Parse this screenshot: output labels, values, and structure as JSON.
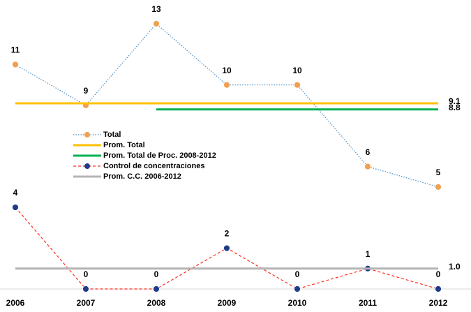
{
  "chart_data": {
    "type": "line",
    "categories": [
      "2006",
      "2007",
      "2008",
      "2009",
      "2010",
      "2011",
      "2012"
    ],
    "ylim": [
      0,
      13
    ],
    "series": [
      {
        "name": "Total",
        "color": "#4a90c8",
        "line_style": "dotted",
        "marker": true,
        "marker_color": "#f0a050",
        "values": [
          11,
          9,
          13,
          10,
          10,
          6,
          5
        ],
        "point_labels": true
      },
      {
        "name": "Prom. Total",
        "color": "#ffc000",
        "line_style": "solid",
        "marker": false,
        "values": [
          9.1,
          9.1,
          9.1,
          9.1,
          9.1,
          9.1,
          9.1
        ],
        "value_labels": [
          null,
          null,
          null,
          null,
          null,
          null,
          "9.1"
        ]
      },
      {
        "name": "Prom. Total de Proc. 2008-2012",
        "color": "#00b050",
        "line_style": "solid",
        "marker": false,
        "values": [
          null,
          null,
          8.8,
          8.8,
          8.8,
          8.8,
          8.8
        ],
        "value_labels": [
          null,
          null,
          null,
          null,
          null,
          null,
          "8.8"
        ]
      },
      {
        "name": "Control de concentraciones",
        "color": "#ff2a1a",
        "line_style": "dashed",
        "marker": true,
        "marker_color": "#1f3c88",
        "values": [
          4,
          0,
          0,
          2,
          0,
          1,
          0
        ],
        "point_labels": true
      },
      {
        "name": "Prom. C.C. 2006-2012",
        "color": "#b4b4b4",
        "line_style": "solid",
        "marker": false,
        "values": [
          1,
          1,
          1,
          1,
          1,
          1,
          1
        ],
        "value_labels": [
          null,
          null,
          null,
          null,
          null,
          null,
          "1.0"
        ]
      }
    ]
  }
}
